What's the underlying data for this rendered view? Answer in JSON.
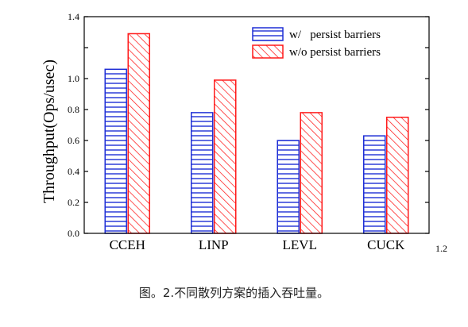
{
  "caption": "图。2.不同散列方案的插入吞吐量。",
  "chart_data": {
    "type": "bar",
    "ylabel": "Throughput(Ops/usec)",
    "xlabel": "",
    "ylim": [
      0.0,
      1.4
    ],
    "yticks": [
      "0.0",
      "0.2",
      "0.4",
      "0.6",
      "0.8",
      "1.0",
      "1.4"
    ],
    "extra_tick_label": "1.2",
    "categories": [
      "CCEH",
      "LINP",
      "LEVL",
      "CUCK"
    ],
    "series": [
      {
        "name": "w/   persist barriers",
        "values": [
          1.06,
          0.78,
          0.6,
          0.63
        ],
        "color": "#1f2fd6",
        "pattern": "horizontal"
      },
      {
        "name": "w/o persist barriers",
        "values": [
          1.29,
          0.99,
          0.78,
          0.75
        ],
        "color": "#ff1a1a",
        "pattern": "diagonal"
      }
    ],
    "legend_position": "top-right",
    "grid": false
  }
}
